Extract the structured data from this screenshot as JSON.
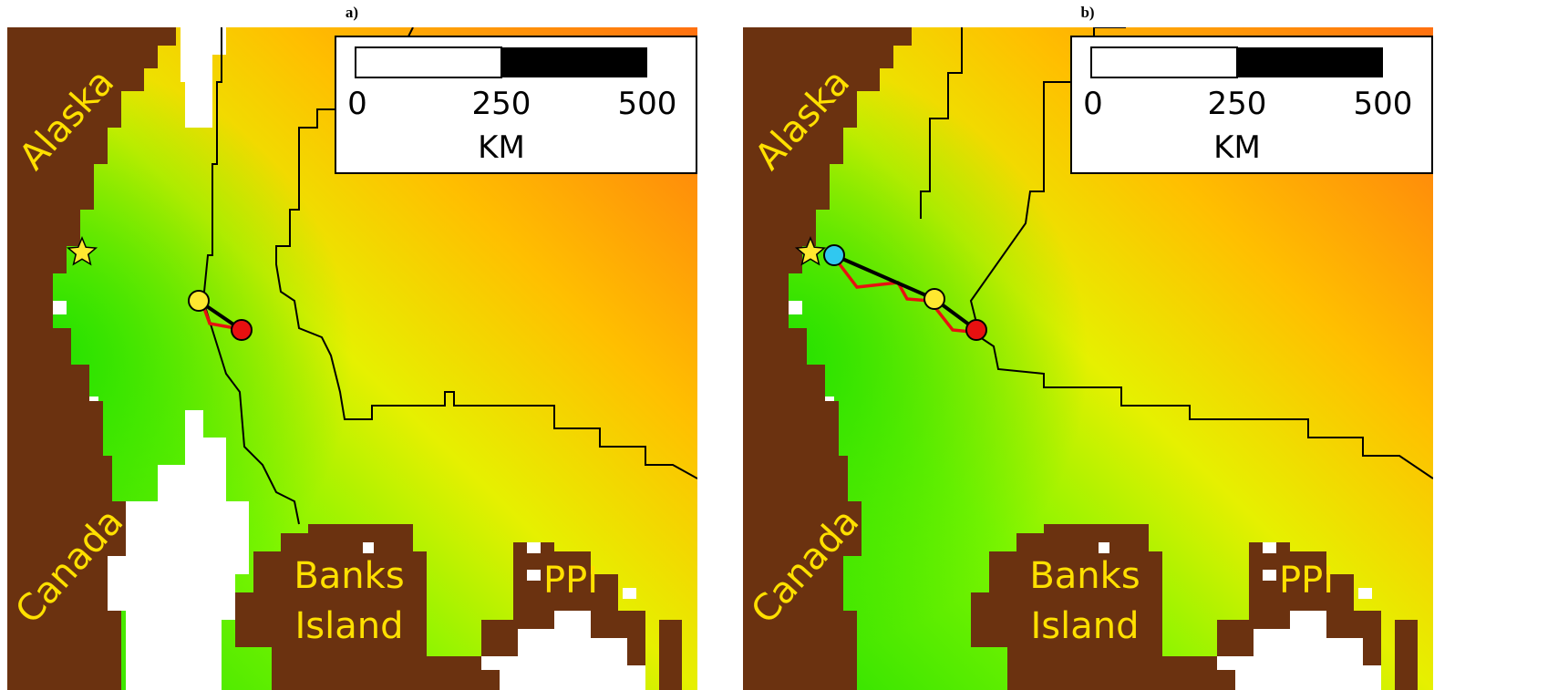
{
  "panels": [
    {
      "label": "a)",
      "scale_bar": {
        "ticks": [
          "0",
          "250",
          "500"
        ],
        "unit": "KM"
      },
      "places": {
        "alaska": "Alaska",
        "canada": "Canada",
        "banks": [
          "Banks",
          "Island"
        ],
        "ppi": "PPI"
      }
    },
    {
      "label": "b)",
      "scale_bar": {
        "ticks": [
          "0",
          "250",
          "500"
        ],
        "unit": "KM"
      },
      "places": {
        "alaska": "Alaska",
        "canada": "Canada",
        "banks": [
          "Banks",
          "Island"
        ],
        "ppi": "PPI"
      }
    }
  ]
}
